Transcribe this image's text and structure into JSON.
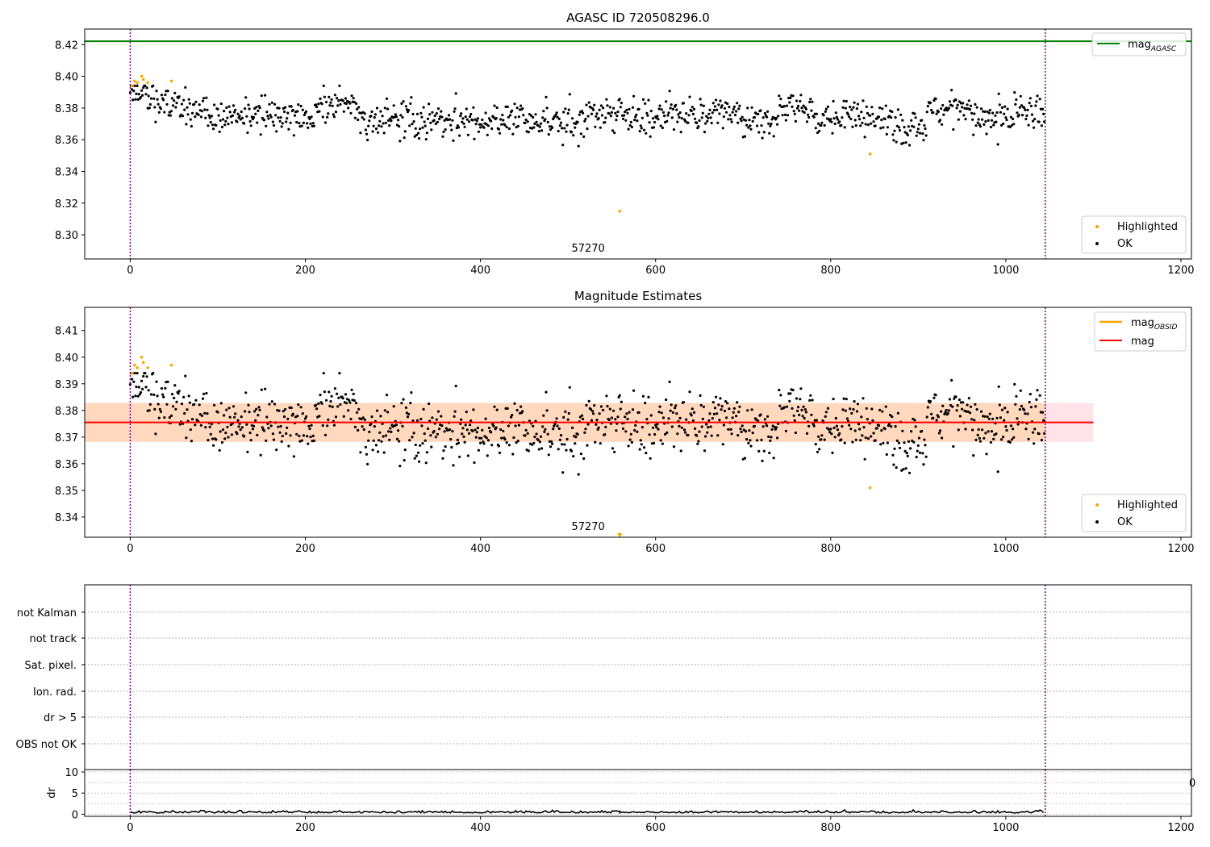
{
  "chart_data": [
    {
      "type": "scatter",
      "title": "AGASC ID 720508296.0",
      "xlim": [
        -52,
        1212
      ],
      "ylim": [
        8.2848,
        8.4298
      ],
      "xticks": [
        0,
        200,
        400,
        600,
        800,
        1000,
        1200
      ],
      "yticks": [
        8.3,
        8.32,
        8.34,
        8.36,
        8.38,
        8.4,
        8.42
      ],
      "yticklabels": [
        "8.30",
        "8.32",
        "8.34",
        "8.36",
        "8.38",
        "8.40",
        "8.42"
      ],
      "annotation": {
        "text": "57270",
        "x": 523
      },
      "vlines": [
        0,
        1045
      ],
      "hline": {
        "name": "mag_AGASC",
        "y": 8.4221,
        "color": "#008000"
      },
      "legend_top": [
        {
          "text": "mag",
          "sub": "AGASC",
          "color": "#008000"
        }
      ],
      "legend_bottom": [
        "Highlighted",
        "OK"
      ],
      "ok_series": {
        "name": "OK",
        "n": 1045,
        "x_start": 0,
        "x_end": 1045,
        "color": "#000000"
      },
      "highlighted": [
        {
          "x": 2,
          "y": 8.394
        },
        {
          "x": 5,
          "y": 8.397
        },
        {
          "x": 8,
          "y": 8.396
        },
        {
          "x": 13,
          "y": 8.4
        },
        {
          "x": 15,
          "y": 8.398
        },
        {
          "x": 20,
          "y": 8.396
        },
        {
          "x": 47,
          "y": 8.397
        },
        {
          "x": 559,
          "y": 8.315
        },
        {
          "x": 845,
          "y": 8.351
        }
      ],
      "highlight_color": "#ffa500"
    },
    {
      "type": "scatter",
      "title": "Magnitude Estimates",
      "xlim": [
        -52,
        1212
      ],
      "ylim": [
        8.3324,
        8.4187
      ],
      "xticks": [
        0,
        200,
        400,
        600,
        800,
        1000,
        1200
      ],
      "yticks": [
        8.34,
        8.35,
        8.36,
        8.37,
        8.38,
        8.39,
        8.4,
        8.41
      ],
      "yticklabels": [
        "8.34",
        "8.35",
        "8.36",
        "8.37",
        "8.38",
        "8.39",
        "8.40",
        "8.41"
      ],
      "annotation": {
        "text": "57270",
        "x": 523
      },
      "vlines": [
        0,
        1045
      ],
      "mag": 8.3755,
      "mag_band": [
        8.3682,
        8.3828
      ],
      "mag_band_xend": 1100,
      "mag_obsid_band_xend": 1045,
      "legend_top": [
        {
          "text": "mag",
          "sub": "OBSID",
          "color": "#ffa500"
        },
        {
          "text": "mag",
          "sub": "",
          "color": "#ff0000"
        }
      ],
      "legend_bottom": [
        "Highlighted",
        "OK"
      ],
      "outlier_marker": {
        "x": 559,
        "y": 8.333
      }
    },
    {
      "type": "scatter",
      "title": "",
      "categories": [
        "not Kalman",
        "not track",
        "Sat. pixel.",
        "Ion. rad.",
        "dr > 5",
        "OBS not OK"
      ],
      "xlim": [
        -52,
        1212
      ],
      "vlines": [
        0,
        1045
      ],
      "flags": []
    },
    {
      "type": "line",
      "title": "",
      "ylabel": "dr",
      "xlim": [
        -52,
        1212
      ],
      "ylim": [
        -0.5,
        10
      ],
      "xticks": [
        0,
        200,
        400,
        600,
        800,
        1000,
        1200
      ],
      "yticks": [
        0,
        5,
        10
      ],
      "yticklabels": [
        "0",
        "5",
        "10"
      ],
      "vlines": [
        0,
        1045
      ],
      "clipped_right_label": "0",
      "dr_typical": 0.3
    }
  ]
}
